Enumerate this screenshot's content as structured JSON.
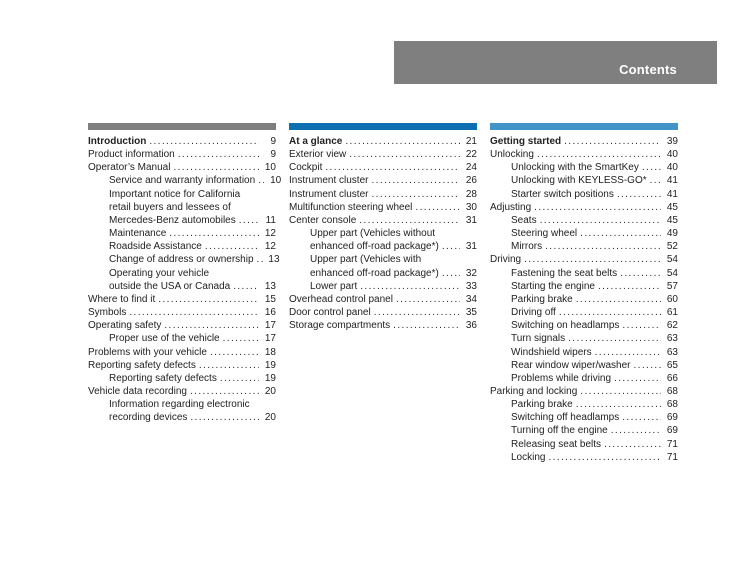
{
  "header": {
    "title": "Contents",
    "bg_color": "#7f7f7f",
    "text_color": "#ffffff"
  },
  "columns": [
    {
      "id": "introduction",
      "bar_color": "#7f7f7f",
      "rows": [
        {
          "text": "Introduction",
          "page": "9",
          "bold": true,
          "indent": 0
        },
        {
          "text": "Product information",
          "page": "9",
          "indent": 0
        },
        {
          "text": "Operator’s Manual",
          "page": "10",
          "indent": 0
        },
        {
          "text": "Service and warranty information",
          "page": "10",
          "indent": 1
        },
        {
          "text": "Important notice for California",
          "indent": 1
        },
        {
          "text": "retail buyers and lessees of",
          "indent": 1
        },
        {
          "text": "Mercedes-Benz automobiles",
          "page": "11",
          "indent": 1
        },
        {
          "text": "Maintenance",
          "page": "12",
          "indent": 1
        },
        {
          "text": "Roadside Assistance",
          "page": "12",
          "indent": 1
        },
        {
          "text": "Change of address or ownership",
          "page": "13",
          "indent": 1
        },
        {
          "text": "Operating your vehicle",
          "indent": 1
        },
        {
          "text": "outside the USA or Canada",
          "page": "13",
          "indent": 1
        },
        {
          "text": "Where to find it",
          "page": "15",
          "indent": 0
        },
        {
          "text": "Symbols",
          "page": "16",
          "indent": 0
        },
        {
          "text": "Operating safety",
          "page": "17",
          "indent": 0
        },
        {
          "text": "Proper use of the vehicle",
          "page": "17",
          "indent": 1
        },
        {
          "text": "Problems with your vehicle",
          "page": "18",
          "indent": 0
        },
        {
          "text": "Reporting safety defects",
          "page": "19",
          "indent": 0
        },
        {
          "text": "Reporting safety defects",
          "page": "19",
          "indent": 1
        },
        {
          "text": "Vehicle data recording",
          "page": "20",
          "indent": 0
        },
        {
          "text": "Information regarding electronic",
          "indent": 1
        },
        {
          "text": "recording devices",
          "page": "20",
          "indent": 1
        }
      ]
    },
    {
      "id": "at-a-glance",
      "bar_color": "#0b6fb0",
      "rows": [
        {
          "text": "At a glance",
          "page": "21",
          "bold": true,
          "indent": 0
        },
        {
          "text": "Exterior view",
          "page": "22",
          "indent": 0
        },
        {
          "text": "Cockpit",
          "page": "24",
          "indent": 0
        },
        {
          "text": "Instrument cluster",
          "page": "26",
          "indent": 0
        },
        {
          "text": "Instrument cluster",
          "page": "28",
          "indent": 0
        },
        {
          "text": "Multifunction steering wheel",
          "page": "30",
          "indent": 0
        },
        {
          "text": "Center console",
          "page": "31",
          "indent": 0
        },
        {
          "text": "Upper part (Vehicles without",
          "indent": 1
        },
        {
          "text": "enhanced off-road package*)",
          "page": "31",
          "indent": 1
        },
        {
          "text": "Upper part (Vehicles with",
          "indent": 1
        },
        {
          "text": "enhanced off-road package*)",
          "page": "32",
          "indent": 1
        },
        {
          "text": "Lower part",
          "page": "33",
          "indent": 1
        },
        {
          "text": "Overhead control panel",
          "page": "34",
          "indent": 0
        },
        {
          "text": "Door control panel",
          "page": "35",
          "indent": 0
        },
        {
          "text": "Storage compartments",
          "page": "36",
          "indent": 0
        }
      ]
    },
    {
      "id": "getting-started",
      "bar_color": "#4194c8",
      "rows": [
        {
          "text": "Getting started",
          "page": "39",
          "bold": true,
          "indent": 0
        },
        {
          "text": "Unlocking",
          "page": "40",
          "indent": 0
        },
        {
          "text": "Unlocking with the SmartKey",
          "page": "40",
          "indent": 1
        },
        {
          "text": "Unlocking with KEYLESS-GO*",
          "page": "41",
          "indent": 1
        },
        {
          "text": "Starter switch positions",
          "page": "41",
          "indent": 1
        },
        {
          "text": "Adjusting",
          "page": "45",
          "indent": 0
        },
        {
          "text": "Seats",
          "page": "45",
          "indent": 1
        },
        {
          "text": "Steering wheel",
          "page": "49",
          "indent": 1
        },
        {
          "text": "Mirrors",
          "page": "52",
          "indent": 1
        },
        {
          "text": "Driving",
          "page": "54",
          "indent": 0
        },
        {
          "text": "Fastening the seat belts",
          "page": "54",
          "indent": 1
        },
        {
          "text": "Starting the engine",
          "page": "57",
          "indent": 1
        },
        {
          "text": "Parking brake",
          "page": "60",
          "indent": 1
        },
        {
          "text": "Driving off",
          "page": "61",
          "indent": 1
        },
        {
          "text": "Switching on headlamps",
          "page": "62",
          "indent": 1
        },
        {
          "text": "Turn signals",
          "page": "63",
          "indent": 1
        },
        {
          "text": "Windshield wipers",
          "page": "63",
          "indent": 1
        },
        {
          "text": "Rear window wiper/washer",
          "page": "65",
          "indent": 1
        },
        {
          "text": "Problems while driving",
          "page": "66",
          "indent": 1
        },
        {
          "text": "Parking and locking",
          "page": "68",
          "indent": 0
        },
        {
          "text": "Parking brake",
          "page": "68",
          "indent": 1
        },
        {
          "text": "Switching off headlamps",
          "page": "69",
          "indent": 1
        },
        {
          "text": "Turning off the engine",
          "page": "69",
          "indent": 1
        },
        {
          "text": "Releasing seat belts",
          "page": "71",
          "indent": 1
        },
        {
          "text": "Locking",
          "page": "71",
          "indent": 1
        }
      ]
    }
  ]
}
